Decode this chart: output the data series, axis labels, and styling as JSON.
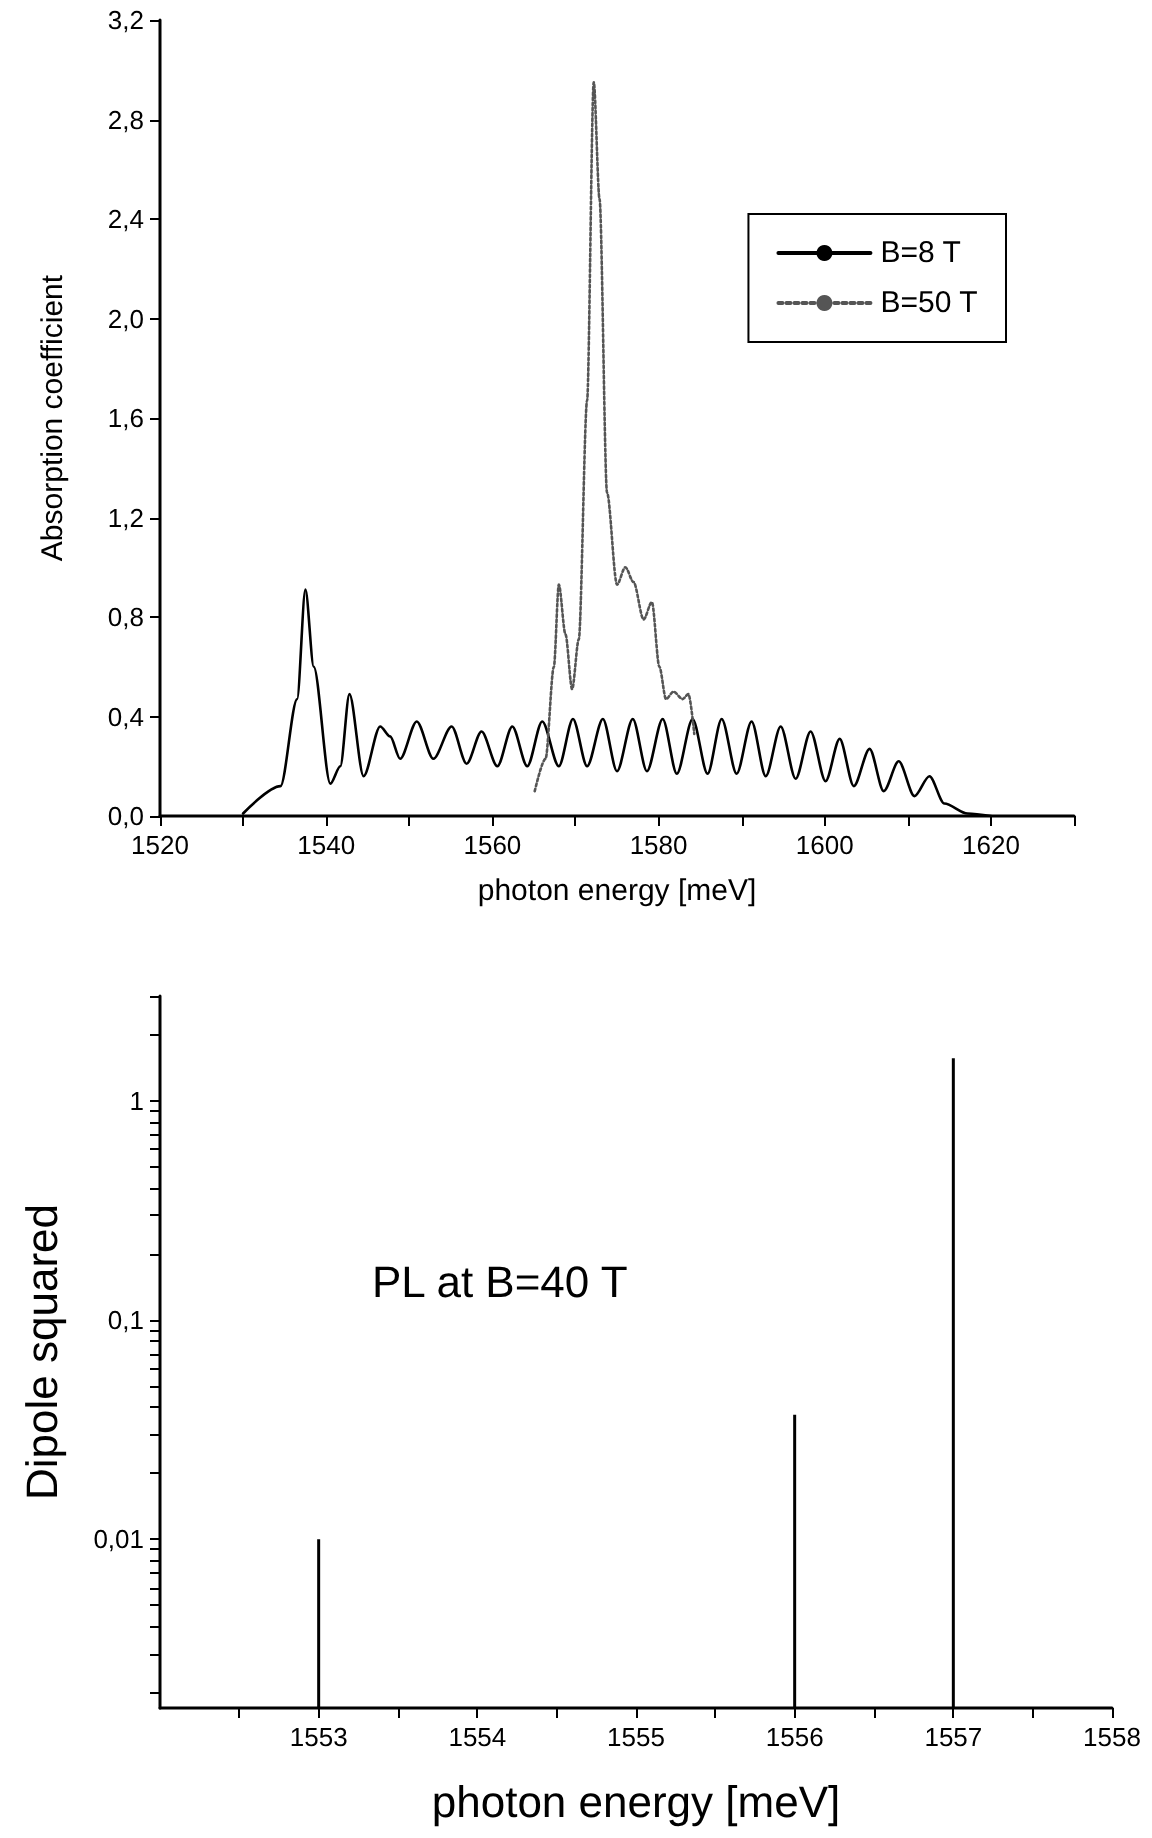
{
  "chart_data": [
    {
      "type": "line",
      "xlabel": "photon energy [meV]",
      "ylabel": "Absorption coefficient",
      "xlim": [
        1520,
        1630
      ],
      "ylim": [
        0,
        3.2
      ],
      "xticks": [
        1520,
        {
          "value": 1530,
          "label": null
        },
        1540,
        {
          "value": 1550,
          "label": null
        },
        1560,
        {
          "value": 1570,
          "label": null
        },
        1580,
        {
          "value": 1590,
          "label": null
        },
        1600,
        {
          "value": 1610,
          "label": null
        },
        1620,
        {
          "value": 1630,
          "label": null
        }
      ],
      "yticks": [
        {
          "value": 0,
          "label": "0,0"
        },
        {
          "value": 0.4,
          "label": "0,4"
        },
        {
          "value": 0.8,
          "label": "0,8"
        },
        {
          "value": 1.2,
          "label": "1,2"
        },
        {
          "value": 1.6,
          "label": "1,6"
        },
        {
          "value": 2.0,
          "label": "2,0"
        },
        {
          "value": 2.4,
          "label": "2,4"
        },
        {
          "value": 2.8,
          "label": "2,8"
        },
        {
          "value": 3.2,
          "label": "3,2"
        }
      ],
      "legend": "top right",
      "marker": "none",
      "grid": false,
      "series": [
        {
          "name": "B=8 T",
          "color": "#000000",
          "line_style": "solid",
          "x": [
            1530,
            1534.5,
            1536.5,
            1537.5,
            1538.5,
            1540.5,
            1541.7,
            1542.8,
            1544.5,
            1546.5,
            1547.7,
            1548.9,
            1550.9,
            1552.9,
            1555.1,
            1556.9,
            1558.7,
            1560.6,
            1562.4,
            1564.2,
            1566,
            1568,
            1569.7,
            1571.4,
            1573.3,
            1575,
            1576.9,
            1578.6,
            1580.5,
            1582.2,
            1584.1,
            1585.9,
            1587.6,
            1589.4,
            1591.2,
            1592.9,
            1594.7,
            1596.5,
            1598.3,
            1600.1,
            1601.8,
            1603.5,
            1605.4,
            1607.1,
            1608.9,
            1610.8,
            1612.6,
            1614.4,
            1617.2,
            1620
          ],
          "values": [
            0.01,
            0.12,
            0.47,
            0.91,
            0.6,
            0.13,
            0.2,
            0.49,
            0.16,
            0.36,
            0.32,
            0.23,
            0.38,
            0.23,
            0.36,
            0.21,
            0.34,
            0.2,
            0.36,
            0.2,
            0.38,
            0.2,
            0.39,
            0.2,
            0.39,
            0.18,
            0.39,
            0.18,
            0.39,
            0.17,
            0.39,
            0.17,
            0.39,
            0.17,
            0.38,
            0.16,
            0.36,
            0.15,
            0.34,
            0.14,
            0.31,
            0.12,
            0.27,
            0.1,
            0.22,
            0.08,
            0.16,
            0.05,
            0.01,
            0.0
          ]
        },
        {
          "name": "B=50 T",
          "color": "#555555",
          "line_style": "dotted",
          "x": [
            1565.1,
            1566.4,
            1567.4,
            1568,
            1568.8,
            1569.6,
            1570.4,
            1571.4,
            1572.2,
            1572.9,
            1573.8,
            1575,
            1576,
            1577,
            1578.2,
            1579.2,
            1580.1,
            1580.9,
            1581.8,
            1582.9,
            1583.6,
            1584.3
          ],
          "values": [
            0.1,
            0.23,
            0.6,
            0.93,
            0.73,
            0.51,
            0.71,
            1.67,
            2.95,
            2.48,
            1.3,
            0.93,
            1.0,
            0.94,
            0.79,
            0.86,
            0.6,
            0.47,
            0.5,
            0.47,
            0.49,
            0.33
          ]
        }
      ]
    },
    {
      "type": "bar",
      "xlabel": "photon energy [meV]",
      "ylabel": "Dipole squared",
      "annotations": [
        "PL at B=40 T"
      ],
      "log": "y",
      "xlim": [
        1552,
        1558
      ],
      "ylim": [
        0.0017,
        3
      ],
      "xticks": [
        {
          "value": 1552.5,
          "label": null
        },
        1553,
        {
          "value": 1553.5,
          "label": null
        },
        1554,
        {
          "value": 1554.5,
          "label": null
        },
        1555,
        {
          "value": 1555.5,
          "label": null
        },
        1556,
        {
          "value": 1556.5,
          "label": null
        },
        1557,
        {
          "value": 1557.5,
          "label": null
        },
        1558
      ],
      "yticks": [
        {
          "value": 0.002,
          "label": null
        },
        {
          "value": 0.003,
          "label": null
        },
        {
          "value": 0.004,
          "label": null
        },
        {
          "value": 0.005,
          "label": null
        },
        {
          "value": 0.006,
          "label": null
        },
        {
          "value": 0.007,
          "label": null
        },
        {
          "value": 0.008,
          "label": null
        },
        {
          "value": 0.009,
          "label": null
        },
        {
          "value": 0.01,
          "label": "0,01"
        },
        {
          "value": 0.02,
          "label": null
        },
        {
          "value": 0.03,
          "label": null
        },
        {
          "value": 0.04,
          "label": null
        },
        {
          "value": 0.05,
          "label": null
        },
        {
          "value": 0.06,
          "label": null
        },
        {
          "value": 0.07,
          "label": null
        },
        {
          "value": 0.08,
          "label": null
        },
        {
          "value": 0.09,
          "label": null
        },
        {
          "value": 0.1,
          "label": "0,1"
        },
        {
          "value": 0.2,
          "label": null
        },
        {
          "value": 0.3,
          "label": null
        },
        {
          "value": 0.4,
          "label": null
        },
        {
          "value": 0.5,
          "label": null
        },
        {
          "value": 0.6,
          "label": null
        },
        {
          "value": 0.7,
          "label": null
        },
        {
          "value": 0.8,
          "label": null
        },
        {
          "value": 0.9,
          "label": null
        },
        {
          "value": 1,
          "label": "1"
        },
        {
          "value": 2,
          "label": null
        },
        {
          "value": 3,
          "label": null
        }
      ],
      "grid": false,
      "legend": false,
      "series": [
        {
          "color": "#000000",
          "x": [
            1553,
            1556,
            1557
          ],
          "values": [
            0.01,
            0.037,
            1.56
          ]
        }
      ]
    }
  ]
}
